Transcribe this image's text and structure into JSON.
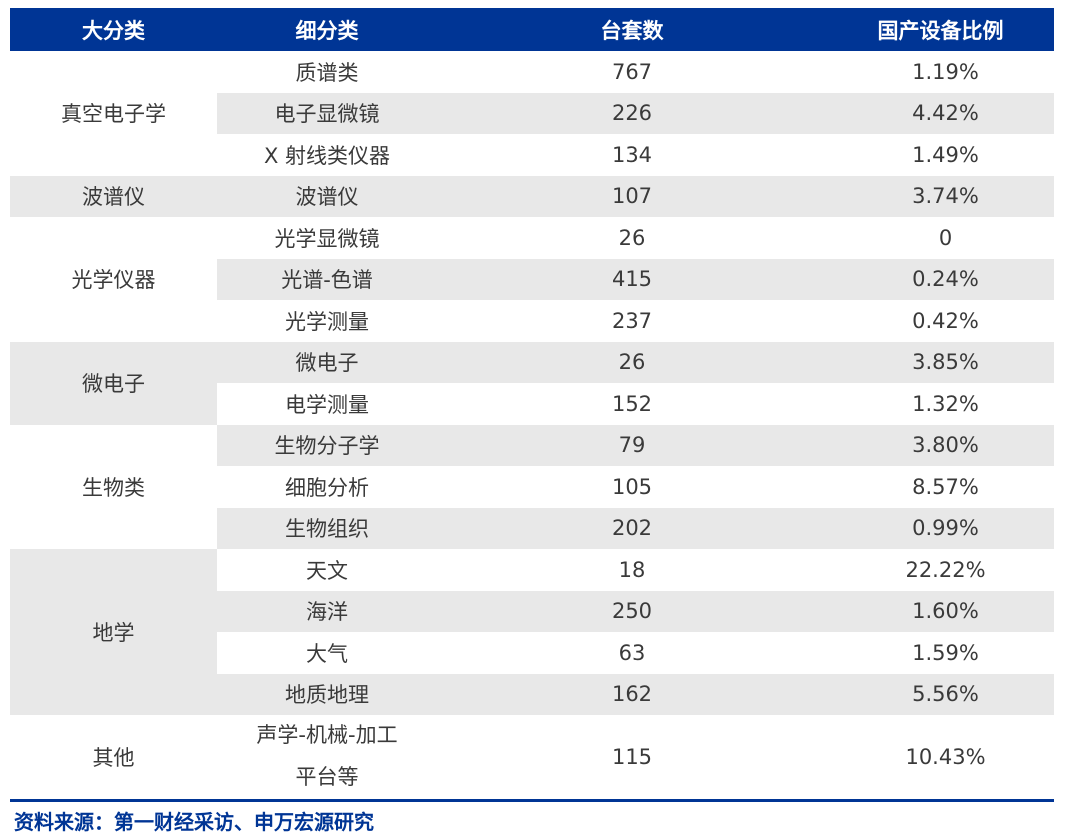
{
  "header": {
    "major": "大分类",
    "sub": "细分类",
    "count": "台套数",
    "ratio": "国产设备比例"
  },
  "groups": [
    {
      "major": "真空电子学",
      "rows": [
        {
          "sub": "质谱类",
          "count": "767",
          "ratio": "1.19%"
        },
        {
          "sub": "电子显微镜",
          "count": "226",
          "ratio": "4.42%"
        },
        {
          "sub": "X 射线类仪器",
          "count": "134",
          "ratio": "1.49%"
        }
      ]
    },
    {
      "major": "波谱仪",
      "rows": [
        {
          "sub": "波谱仪",
          "count": "107",
          "ratio": "3.74%"
        }
      ]
    },
    {
      "major": "光学仪器",
      "rows": [
        {
          "sub": "光学显微镜",
          "count": "26",
          "ratio": "0"
        },
        {
          "sub": "光谱-色谱",
          "count": "415",
          "ratio": "0.24%"
        },
        {
          "sub": "光学测量",
          "count": "237",
          "ratio": "0.42%"
        }
      ]
    },
    {
      "major": "微电子",
      "rows": [
        {
          "sub": "微电子",
          "count": "26",
          "ratio": "3.85%"
        },
        {
          "sub": "电学测量",
          "count": "152",
          "ratio": "1.32%"
        }
      ]
    },
    {
      "major": "生物类",
      "rows": [
        {
          "sub": "生物分子学",
          "count": "79",
          "ratio": "3.80%"
        },
        {
          "sub": "细胞分析",
          "count": "105",
          "ratio": "8.57%"
        },
        {
          "sub": "生物组织",
          "count": "202",
          "ratio": "0.99%"
        }
      ]
    },
    {
      "major": "地学",
      "rows": [
        {
          "sub": "天文",
          "count": "18",
          "ratio": "22.22%"
        },
        {
          "sub": "海洋",
          "count": "250",
          "ratio": "1.60%"
        },
        {
          "sub": "大气",
          "count": "63",
          "ratio": "1.59%"
        },
        {
          "sub": "地质地理",
          "count": "162",
          "ratio": "5.56%"
        }
      ]
    },
    {
      "major": "其他",
      "rows": [
        {
          "sub_line1": "声学-机械-加工",
          "sub_line2": "平台等",
          "count": "115",
          "ratio": "10.43%"
        }
      ]
    }
  ],
  "source": "资料来源：第一财经采访、申万宏源研究",
  "colors": {
    "header_bg": "#003595",
    "stripe": "#e8e8e8",
    "source_text": "#003595"
  }
}
